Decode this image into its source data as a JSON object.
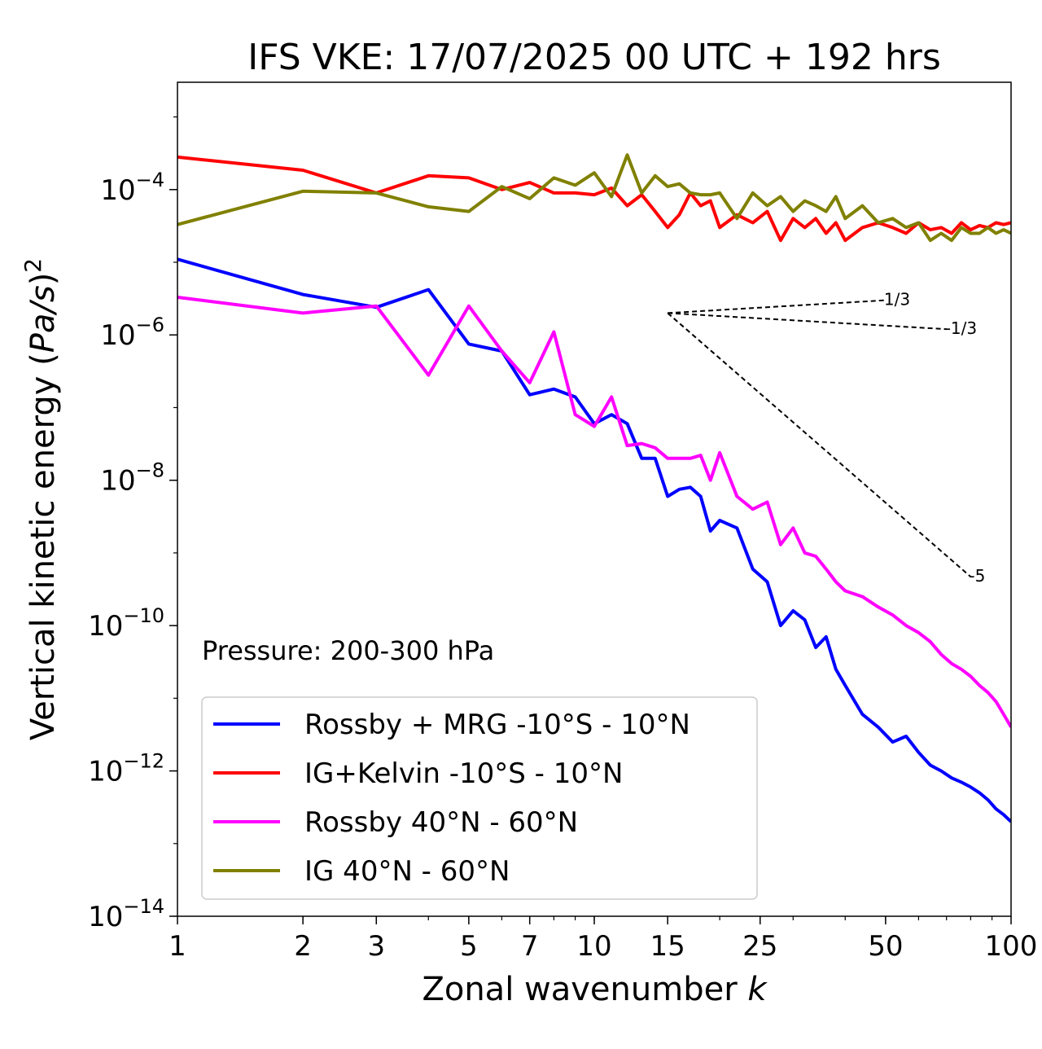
{
  "chart_data": {
    "type": "line",
    "title": "IFS VKE: 17/07/2025 00 UTC + 192 hrs",
    "xlabel_text": "Zonal wavenumber ",
    "xlabel_var": "k",
    "ylabel_text": "Vertical kinetic energy (",
    "ylabel_var": "Pa/s",
    "ylabel_close": ")",
    "ylabel_exp": "2",
    "xscale": "log",
    "yscale": "log",
    "xlim": [
      1,
      100
    ],
    "ylim": [
      1e-14,
      0.003
    ],
    "xticks": [
      1,
      2,
      3,
      5,
      7,
      10,
      15,
      25,
      50,
      100
    ],
    "xtick_labels": [
      "1",
      "2",
      "3",
      "5",
      "7",
      "10",
      "15",
      "25",
      "50",
      "100"
    ],
    "yticks": [
      1e-14,
      1e-12,
      1e-10,
      1e-08,
      1e-06,
      0.0001
    ],
    "ytick_base": "10",
    "ytick_exps": [
      "−14",
      "−12",
      "−10",
      "−8",
      "−6",
      "−4"
    ],
    "annotation": "Pressure: 200-300 hPa",
    "legend_position": "lower-left",
    "grid": false,
    "series": [
      {
        "name": "Rossby + MRG -10°S - 10°N",
        "color": "#0000ff",
        "x": [
          1,
          2,
          3,
          4,
          5,
          6,
          7,
          8,
          9,
          10,
          11,
          12,
          13,
          14,
          15,
          16,
          17,
          18,
          19,
          20,
          22,
          24,
          26,
          28,
          30,
          32,
          34,
          36,
          38,
          40,
          44,
          48,
          52,
          56,
          60,
          64,
          68,
          72,
          76,
          80,
          84,
          88,
          92,
          96,
          100
        ],
        "y": [
          1.1e-05,
          3.6e-06,
          2.4e-06,
          4.2e-06,
          7.5e-07,
          6e-07,
          1.5e-07,
          1.8e-07,
          1.4e-07,
          6e-08,
          8e-08,
          6e-08,
          2e-08,
          2e-08,
          6e-09,
          7.5e-09,
          8e-09,
          6e-09,
          2e-09,
          2.8e-09,
          2.2e-09,
          6e-10,
          4e-10,
          1e-10,
          1.6e-10,
          1.2e-10,
          5e-11,
          7e-11,
          2.5e-11,
          1.5e-11,
          6e-12,
          4e-12,
          2.5e-12,
          3e-12,
          1.8e-12,
          1.2e-12,
          1e-12,
          8e-13,
          7e-13,
          6e-13,
          5e-13,
          4e-13,
          3e-13,
          2.5e-13,
          2e-13
        ]
      },
      {
        "name": "IG+Kelvin -10°S - 10°N",
        "color": "#ff0000",
        "x": [
          1,
          2,
          3,
          4,
          5,
          6,
          7,
          8,
          9,
          10,
          11,
          12,
          13,
          14,
          15,
          16,
          17,
          18,
          19,
          20,
          22,
          24,
          26,
          28,
          30,
          32,
          34,
          36,
          38,
          40,
          44,
          48,
          52,
          56,
          60,
          64,
          68,
          72,
          76,
          80,
          84,
          88,
          92,
          96,
          100
        ],
        "y": [
          0.00028,
          0.000185,
          9e-05,
          0.000155,
          0.000145,
          0.0001,
          0.000125,
          9e-05,
          9e-05,
          8.5e-05,
          0.000105,
          6e-05,
          8.5e-05,
          5e-05,
          3e-05,
          4.5e-05,
          9e-05,
          6e-05,
          7e-05,
          3e-05,
          4.5e-05,
          3.5e-05,
          5e-05,
          2e-05,
          4e-05,
          3e-05,
          4e-05,
          2.5e-05,
          3.5e-05,
          2e-05,
          3e-05,
          3.5e-05,
          3e-05,
          2.5e-05,
          3.5e-05,
          2.8e-05,
          3e-05,
          2.5e-05,
          3.5e-05,
          2.8e-05,
          3.2e-05,
          3e-05,
          3.5e-05,
          3.3e-05,
          3.5e-05
        ]
      },
      {
        "name": "Rossby 40°N - 60°N",
        "color": "#ff00ff",
        "x": [
          1,
          2,
          3,
          4,
          5,
          6,
          7,
          8,
          9,
          10,
          11,
          12,
          13,
          14,
          15,
          16,
          17,
          18,
          19,
          20,
          22,
          24,
          26,
          28,
          30,
          32,
          34,
          36,
          38,
          40,
          44,
          48,
          52,
          56,
          60,
          64,
          68,
          72,
          76,
          80,
          84,
          88,
          92,
          96,
          100
        ],
        "y": [
          3.3e-06,
          2e-06,
          2.5e-06,
          2.8e-07,
          2.5e-06,
          6e-07,
          2.2e-07,
          1.1e-06,
          8e-08,
          5.5e-08,
          1.4e-07,
          3e-08,
          3.2e-08,
          2.8e-08,
          2e-08,
          2e-08,
          2e-08,
          2.2e-08,
          1e-08,
          2.4e-08,
          6e-09,
          4e-09,
          5e-09,
          1.3e-09,
          2.2e-09,
          1e-09,
          9e-10,
          6e-10,
          4e-10,
          3e-10,
          2.5e-10,
          1.8e-10,
          1.4e-10,
          1e-10,
          8e-11,
          6e-11,
          4e-11,
          3e-11,
          2.5e-11,
          2e-11,
          1.5e-11,
          1.2e-11,
          9e-12,
          6e-12,
          4e-12
        ]
      },
      {
        "name": "IG 40°N - 60°N",
        "color": "#808000",
        "x": [
          1,
          2,
          3,
          4,
          5,
          6,
          7,
          8,
          9,
          10,
          11,
          12,
          13,
          14,
          15,
          16,
          17,
          18,
          19,
          20,
          22,
          24,
          26,
          28,
          30,
          32,
          34,
          36,
          38,
          40,
          44,
          48,
          52,
          56,
          60,
          64,
          68,
          72,
          76,
          80,
          84,
          88,
          92,
          96,
          100
        ],
        "y": [
          3.3e-05,
          9.5e-05,
          9e-05,
          5.8e-05,
          5e-05,
          0.00011,
          7.5e-05,
          0.000145,
          0.000115,
          0.00017,
          8e-05,
          0.0003,
          9e-05,
          0.000155,
          0.00011,
          0.00012,
          9e-05,
          8.5e-05,
          8.5e-05,
          9e-05,
          4e-05,
          9e-05,
          6e-05,
          8e-05,
          5e-05,
          7e-05,
          6e-05,
          5e-05,
          8e-05,
          4e-05,
          6e-05,
          3.5e-05,
          4e-05,
          3e-05,
          3.5e-05,
          2e-05,
          2.5e-05,
          2e-05,
          3e-05,
          2.5e-05,
          2.5e-05,
          3e-05,
          2.5e-05,
          2.8e-05,
          2.5e-05
        ]
      }
    ],
    "reference_slopes": [
      {
        "label": "1/3",
        "slope": 0.333,
        "x": [
          15,
          50
        ],
        "y": [
          2e-06,
          3e-06
        ]
      },
      {
        "label": "-1/3",
        "slope": -0.333,
        "x": [
          15,
          70
        ],
        "y": [
          2e-06,
          1.2e-06
        ]
      },
      {
        "label": "-5",
        "slope": -5,
        "x": [
          15,
          80
        ],
        "y": [
          2e-06,
          4.7e-10
        ]
      }
    ]
  }
}
